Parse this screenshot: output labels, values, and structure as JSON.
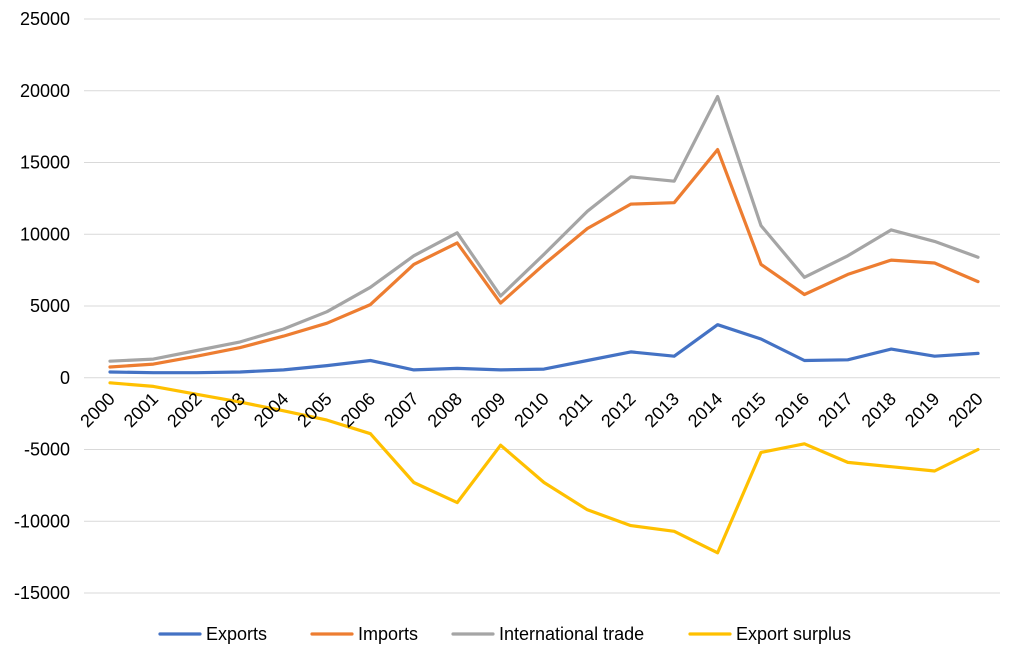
{
  "chart_data": {
    "type": "line",
    "title": "",
    "xlabel": "",
    "ylabel": "",
    "ylim": [
      -15000,
      25000
    ],
    "y_ticks": [
      "-15000",
      "-10000",
      "-5000",
      "0",
      "5000",
      "10000",
      "15000",
      "20000",
      "25000"
    ],
    "grid": true,
    "legend_position": "bottom",
    "categories": [
      "2000",
      "2001",
      "2002",
      "2003",
      "2004",
      "2005",
      "2006",
      "2007",
      "2008",
      "2009",
      "2010",
      "2011",
      "2012",
      "2013",
      "2014",
      "2015",
      "2016",
      "2017",
      "2018",
      "2019",
      "2020"
    ],
    "series": [
      {
        "name": "Exports",
        "color": "#4472c4",
        "values": [
          400,
          350,
          350,
          400,
          550,
          850,
          1200,
          550,
          650,
          550,
          600,
          1200,
          1800,
          1500,
          3700,
          2700,
          1200,
          1250,
          2000,
          1500,
          1700
        ]
      },
      {
        "name": "Imports",
        "color": "#ed7d31",
        "values": [
          750,
          950,
          1500,
          2100,
          2900,
          3800,
          5100,
          7900,
          9400,
          5200,
          7900,
          10400,
          12100,
          12200,
          15900,
          7900,
          5800,
          7200,
          8200,
          8000,
          6700
        ]
      },
      {
        "name": "International trade",
        "color": "#a5a5a5",
        "values": [
          1150,
          1300,
          1900,
          2500,
          3400,
          4600,
          6300,
          8500,
          10100,
          5700,
          8600,
          11600,
          14000,
          13700,
          19600,
          10600,
          7000,
          8500,
          10300,
          9500,
          8400
        ]
      },
      {
        "name": "Export surplus",
        "color": "#ffc000",
        "values": [
          -350,
          -600,
          -1150,
          -1700,
          -2300,
          -2950,
          -3900,
          -7300,
          -8700,
          -4700,
          -7300,
          -9200,
          -10300,
          -10700,
          -12200,
          -5200,
          -4600,
          -5900,
          -6200,
          -6500,
          -5000
        ]
      }
    ]
  }
}
